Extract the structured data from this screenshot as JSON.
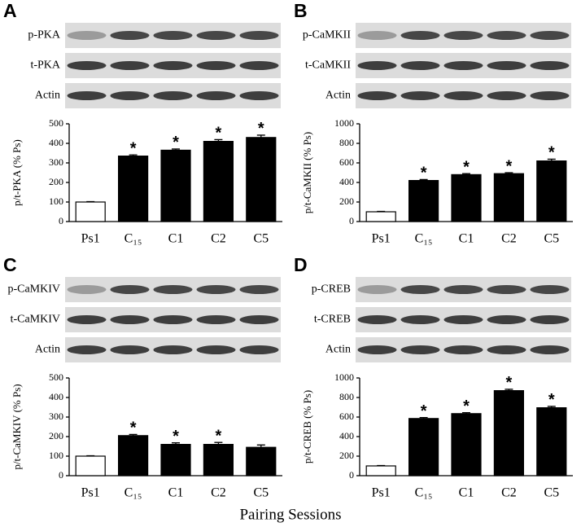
{
  "xlabel": "Pairing Sessions",
  "chart_data": [
    {
      "type": "bar",
      "panel": "A",
      "blots": [
        "p-PKA",
        "t-PKA",
        "Actin"
      ],
      "ylabel": "p/t-PKA (% Ps)",
      "categories": [
        "Ps1",
        "C₁₅",
        "C1",
        "C2",
        "C5"
      ],
      "values": [
        100,
        335,
        365,
        410,
        430
      ],
      "errors": [
        2,
        6,
        6,
        9,
        12
      ],
      "markers": [
        null,
        "*",
        "*",
        "*",
        "*"
      ],
      "colors": [
        "#ffffff",
        "#000000",
        "#000000",
        "#000000",
        "#000000"
      ],
      "ylim": [
        0,
        500
      ],
      "yticks": [
        0,
        100,
        200,
        300,
        400,
        500
      ]
    },
    {
      "type": "bar",
      "panel": "B",
      "blots": [
        "p-CaMKII",
        "t-CaMKII",
        "Actin"
      ],
      "ylabel": "p/t-CaMKII (% Ps)",
      "categories": [
        "Ps1",
        "C₁₅",
        "C1",
        "C2",
        "C5"
      ],
      "values": [
        100,
        420,
        480,
        490,
        620
      ],
      "errors": [
        4,
        10,
        10,
        10,
        18
      ],
      "markers": [
        null,
        "*",
        "*",
        "*",
        "*"
      ],
      "colors": [
        "#ffffff",
        "#000000",
        "#000000",
        "#000000",
        "#000000"
      ],
      "ylim": [
        0,
        1000
      ],
      "yticks": [
        0,
        200,
        400,
        600,
        800,
        1000
      ]
    },
    {
      "type": "bar",
      "panel": "C",
      "blots": [
        "p-CaMKIV",
        "t-CaMKIV",
        "Actin"
      ],
      "ylabel": "p/t-CaMKIV (% Ps)",
      "categories": [
        "Ps1",
        "C₁₅",
        "C1",
        "C2",
        "C5"
      ],
      "values": [
        100,
        205,
        160,
        160,
        145
      ],
      "errors": [
        2,
        6,
        8,
        10,
        12
      ],
      "markers": [
        null,
        "*",
        "*",
        "*",
        null
      ],
      "colors": [
        "#ffffff",
        "#000000",
        "#000000",
        "#000000",
        "#000000"
      ],
      "ylim": [
        0,
        500
      ],
      "yticks": [
        0,
        100,
        200,
        300,
        400,
        500
      ]
    },
    {
      "type": "bar",
      "panel": "D",
      "blots": [
        "p-CREB",
        "t-CREB",
        "Actin"
      ],
      "ylabel": "p/t-CREB (% Ps)",
      "categories": [
        "Ps1",
        "C₁₅",
        "C1",
        "C2",
        "C5"
      ],
      "values": [
        100,
        585,
        635,
        870,
        695
      ],
      "errors": [
        4,
        10,
        10,
        14,
        14
      ],
      "markers": [
        null,
        "*",
        "*",
        "*",
        "*"
      ],
      "colors": [
        "#ffffff",
        "#000000",
        "#000000",
        "#000000",
        "#000000"
      ],
      "ylim": [
        0,
        1000
      ],
      "yticks": [
        0,
        200,
        400,
        600,
        800,
        1000
      ]
    }
  ]
}
